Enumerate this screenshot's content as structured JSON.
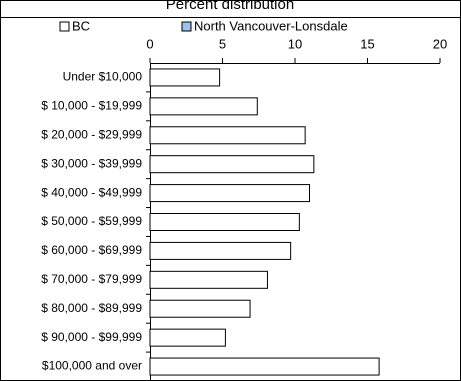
{
  "chart_data": {
    "type": "hbar",
    "title": "Percent distribution",
    "categories": [
      "Under $10,000",
      "$ 10,000 - $19,999",
      "$ 20,000 - $29,999",
      "$ 30,000 - $39,999",
      "$ 40,000 - $49,999",
      "$ 50,000 - $59,999",
      "$ 60,000 - $69,999",
      "$ 70,000 - $79,999",
      "$ 80,000 - $89,999",
      "$ 90,000 - $99,999",
      "$100,000 and over"
    ],
    "series": [
      {
        "name": "BC",
        "color": "#ffffff",
        "values": [
          4.8,
          7.4,
          10.7,
          11.3,
          11.0,
          10.3,
          9.7,
          8.1,
          6.9,
          5.2,
          15.8
        ]
      },
      {
        "name": "North Vancouver-Lonsdale",
        "color": "#9dc3e6",
        "values": [
          null,
          null,
          null,
          null,
          null,
          null,
          null,
          null,
          null,
          null,
          null
        ]
      }
    ],
    "xlim": [
      0,
      20
    ],
    "xticks": [
      0,
      5,
      10,
      15,
      20
    ],
    "grid": false
  }
}
